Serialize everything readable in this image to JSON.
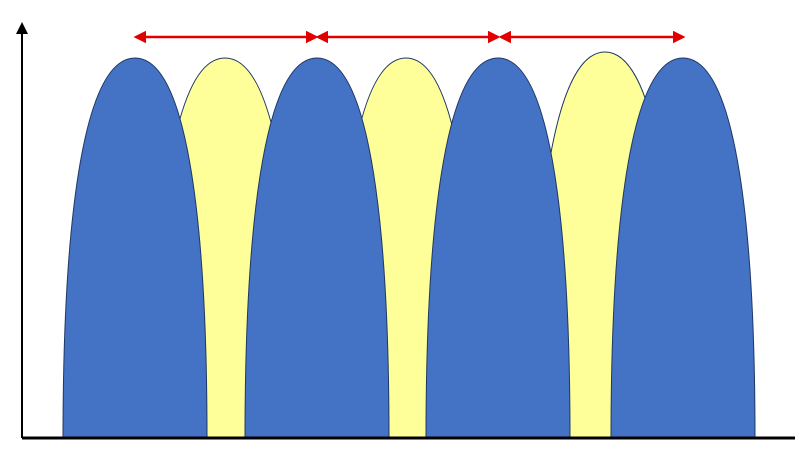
{
  "colors": {
    "background": "#ffffff",
    "blue_lobe_fill": "#4472c4",
    "yellow_lobe_fill": "#ffff99",
    "lobe_outline": "#1f3864",
    "axis": "#000000",
    "spacing_arrow": "#e00000"
  },
  "lobes": {
    "blue_count": 4,
    "yellow_count": 3
  },
  "spacing_arrows": {
    "count": 3
  }
}
